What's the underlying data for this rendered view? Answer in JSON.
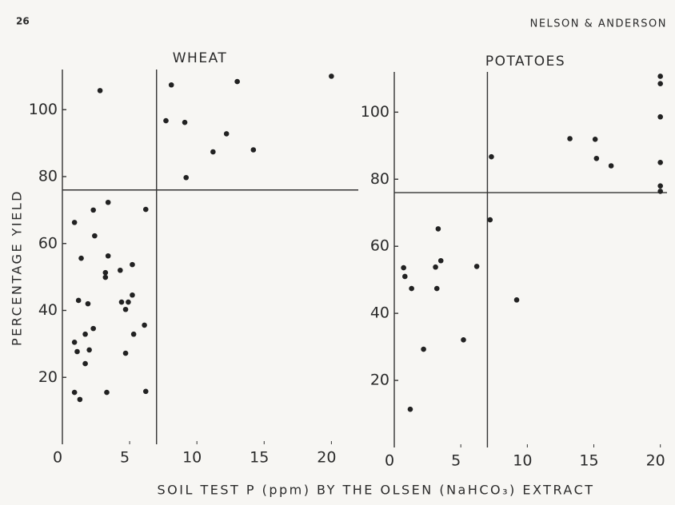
{
  "page_number": "26",
  "running_head": "NELSON & ANDERSON",
  "y_label": "PERCENTAGE YIELD",
  "x_label": "SOIL TEST P (ppm) BY THE OLSEN (NaHCO₃) EXTRACT",
  "chart_data": [
    {
      "type": "scatter",
      "title": "WHEAT",
      "x": [
        2.8,
        8.1,
        13,
        20,
        7.7,
        9.1,
        12.2,
        11.2,
        14.2,
        9.2,
        0.9,
        2.3,
        3.4,
        6.2,
        2.4,
        1.4,
        3.4,
        5.2,
        4.3,
        3.2,
        3.2,
        1.2,
        1.9,
        4.4,
        4.9,
        4.7,
        5.2,
        0.9,
        2.3,
        1.7,
        6.1,
        5.3,
        1.1,
        2,
        4.7,
        1.7,
        0.9,
        1.3,
        3.3,
        6.2
      ],
      "y": [
        105.7,
        107.4,
        108.4,
        110,
        96.7,
        96.2,
        92.8,
        87.4,
        88,
        79.7,
        66.3,
        70,
        72.3,
        70.2,
        62.3,
        55.6,
        56.3,
        53.7,
        52,
        51.3,
        49.9,
        43,
        42,
        42.5,
        42.5,
        40.3,
        44.6,
        30.5,
        34.6,
        32.9,
        35.6,
        32.9,
        27.7,
        28.2,
        27.2,
        24.1,
        15.5,
        13.4,
        15.5,
        15.8
      ],
      "color": "#222222",
      "xlim": [
        0,
        22
      ],
      "ylim": [
        0,
        112
      ],
      "xticks": [
        0,
        5,
        10,
        15,
        20
      ],
      "yticks": [
        20,
        40,
        60,
        80,
        100
      ],
      "threshold_x": 7,
      "threshold_y": 76,
      "grid": false
    },
    {
      "type": "scatter",
      "title": "POTATOES",
      "x": [
        20,
        20,
        20,
        20,
        20,
        20,
        13.2,
        15.1,
        15.2,
        16.3,
        7.3,
        7.2,
        3.3,
        0.7,
        0.8,
        1.3,
        3.1,
        3.5,
        6.2,
        3.2,
        9.2,
        5.2,
        2.2,
        1.2
      ],
      "y": [
        110.7,
        108.5,
        98.6,
        85,
        78,
        76.4,
        92.1,
        91.9,
        86.2,
        84,
        86.7,
        67.9,
        65.2,
        53.6,
        51,
        47.4,
        53.8,
        55.7,
        54,
        47.4,
        44,
        32.1,
        29.3,
        11.4
      ],
      "color": "#222222",
      "xlim": [
        0,
        20.5
      ],
      "ylim": [
        0,
        112
      ],
      "xticks": [
        0,
        5,
        10,
        15,
        20
      ],
      "yticks": [
        20,
        40,
        60,
        80,
        100
      ],
      "threshold_x": 7,
      "threshold_y": 76,
      "grid": false
    }
  ]
}
